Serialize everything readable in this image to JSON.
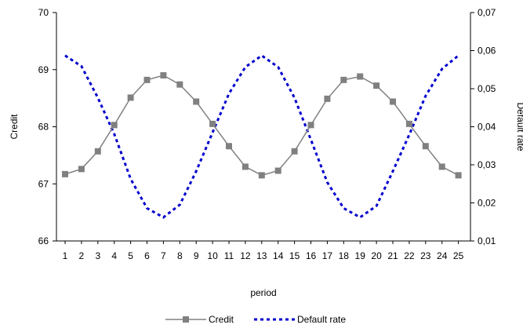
{
  "chart_data": {
    "type": "line",
    "title": "",
    "xlabel": "period",
    "ylabel": "Credit",
    "y2label": "Default rate",
    "x": [
      1,
      2,
      3,
      4,
      5,
      6,
      7,
      8,
      9,
      10,
      11,
      12,
      13,
      14,
      15,
      16,
      17,
      18,
      19,
      20,
      21,
      22,
      23,
      24,
      25
    ],
    "ylim": [
      66,
      70
    ],
    "yticks": [
      66,
      67,
      68,
      69,
      70
    ],
    "y2lim": [
      0.01,
      0.07
    ],
    "y2ticks": [
      "0,01",
      "0,02",
      "0,03",
      "0,04",
      "0,05",
      "0,06",
      "0,07"
    ],
    "legend_position": "bottom",
    "series": [
      {
        "name": "Credit",
        "axis": "left",
        "color": "#808080",
        "marker": "square",
        "values": [
          67.17,
          67.26,
          67.57,
          68.03,
          68.51,
          68.82,
          68.9,
          68.74,
          68.44,
          68.05,
          67.66,
          67.3,
          67.15,
          67.23,
          67.57,
          68.03,
          68.49,
          68.82,
          68.88,
          68.72,
          68.44,
          68.05,
          67.66,
          67.3,
          67.15
        ]
      },
      {
        "name": "Default rate",
        "axis": "right",
        "color": "#0000cc",
        "dash": "dotted",
        "values": [
          0.0587,
          0.0559,
          0.0476,
          0.0381,
          0.0263,
          0.0186,
          0.0162,
          0.0195,
          0.0283,
          0.0385,
          0.0487,
          0.0557,
          0.0587,
          0.0557,
          0.0476,
          0.0366,
          0.0254,
          0.0186,
          0.0162,
          0.0192,
          0.0283,
          0.0379,
          0.0481,
          0.0552,
          0.0587
        ]
      }
    ]
  }
}
